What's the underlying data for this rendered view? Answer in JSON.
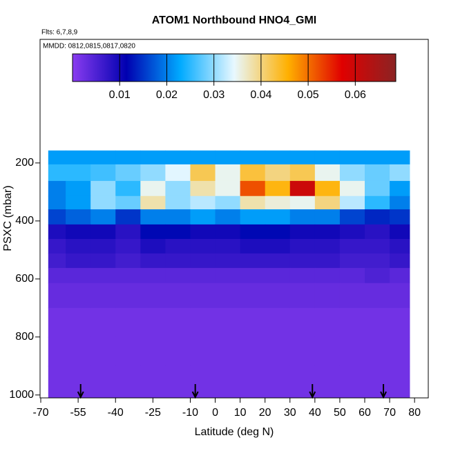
{
  "chart_data": {
    "type": "heatmap",
    "title": "ATOM1 Northbound HNO4_GMI",
    "subtitle": "Flts: 6,7,8,9",
    "annotation": "MMDD: 0812,0815,0817,0820",
    "xlabel": "Latitude (deg N)",
    "ylabel": "PSXC (mbar)",
    "xlim": [
      -70,
      85.5
    ],
    "ylim": [
      1010,
      -226
    ],
    "xticks": [
      -70,
      -55,
      -40,
      -25,
      -10,
      0,
      10,
      20,
      30,
      40,
      50,
      60,
      70,
      80
    ],
    "yticks": [
      200,
      400,
      600,
      800,
      1000
    ],
    "zlim": [
      0,
      0.0686
    ],
    "zticks": [
      0.01,
      0.02,
      0.03,
      0.04,
      0.05,
      0.06
    ],
    "colormap": [
      "#8a3cf0",
      "#0000b0",
      "#00aaff",
      "#e8f8ff",
      "#ffb000",
      "#e00000",
      "#8b2323"
    ],
    "lat_edges": [
      -67,
      -60,
      -50,
      -40,
      -30,
      -20,
      -10,
      0,
      10,
      20,
      30,
      40,
      50,
      60,
      70,
      78
    ],
    "pressure_edges": [
      157,
      205,
      262,
      314,
      360,
      412,
      462,
      512,
      562,
      614,
      700,
      800,
      900,
      1010
    ],
    "values": [
      [
        0.022,
        0.022,
        0.022,
        0.022,
        0.022,
        0.022,
        0.022,
        0.022,
        0.022,
        0.022,
        0.022,
        0.022,
        0.022,
        0.022,
        0.022
      ],
      [
        0.025,
        0.025,
        0.026,
        0.028,
        0.03,
        0.034,
        0.042,
        0.035,
        0.043,
        0.04,
        0.042,
        0.035,
        0.03,
        0.028,
        0.03
      ],
      [
        0.02,
        0.022,
        0.03,
        0.025,
        0.035,
        0.03,
        0.038,
        0.035,
        0.052,
        0.045,
        0.06,
        0.045,
        0.035,
        0.028,
        0.022
      ],
      [
        0.02,
        0.022,
        0.03,
        0.028,
        0.038,
        0.03,
        0.032,
        0.03,
        0.038,
        0.036,
        0.035,
        0.04,
        0.032,
        0.025,
        0.02
      ],
      [
        0.016,
        0.018,
        0.02,
        0.015,
        0.02,
        0.02,
        0.022,
        0.02,
        0.022,
        0.022,
        0.02,
        0.02,
        0.016,
        0.014,
        0.015
      ],
      [
        0.009,
        0.01,
        0.01,
        0.008,
        0.012,
        0.012,
        0.01,
        0.01,
        0.012,
        0.012,
        0.01,
        0.01,
        0.009,
        0.008,
        0.01
      ],
      [
        0.007,
        0.008,
        0.008,
        0.007,
        0.009,
        0.008,
        0.008,
        0.008,
        0.009,
        0.009,
        0.008,
        0.008,
        0.007,
        0.007,
        0.008
      ],
      [
        0.006,
        0.007,
        0.007,
        0.006,
        0.007,
        0.007,
        0.007,
        0.007,
        0.007,
        0.007,
        0.007,
        0.007,
        0.006,
        0.006,
        0.007
      ],
      [
        0.004,
        0.004,
        0.004,
        0.004,
        0.004,
        0.004,
        0.004,
        0.004,
        0.004,
        0.004,
        0.004,
        0.004,
        0.004,
        0.005,
        0.004
      ],
      [
        0.003,
        0.003,
        0.003,
        0.003,
        0.003,
        0.003,
        0.003,
        0.003,
        0.003,
        0.003,
        0.003,
        0.003,
        0.003,
        0.003,
        0.003
      ],
      [
        0.002,
        0.002,
        0.002,
        0.002,
        0.002,
        0.002,
        0.002,
        0.002,
        0.002,
        0.002,
        0.002,
        0.002,
        0.002,
        0.002,
        0.002
      ],
      [
        0.002,
        0.002,
        0.002,
        0.002,
        0.002,
        0.002,
        0.002,
        0.002,
        0.002,
        0.002,
        0.002,
        0.002,
        0.002,
        0.002,
        0.002
      ],
      [
        0.002,
        0.002,
        0.002,
        0.002,
        0.002,
        0.002,
        0.002,
        0.002,
        0.002,
        0.002,
        0.002,
        0.002,
        0.002,
        0.002,
        0.002
      ]
    ],
    "arrow_lats": [
      -54,
      -8,
      39,
      67.5
    ]
  }
}
